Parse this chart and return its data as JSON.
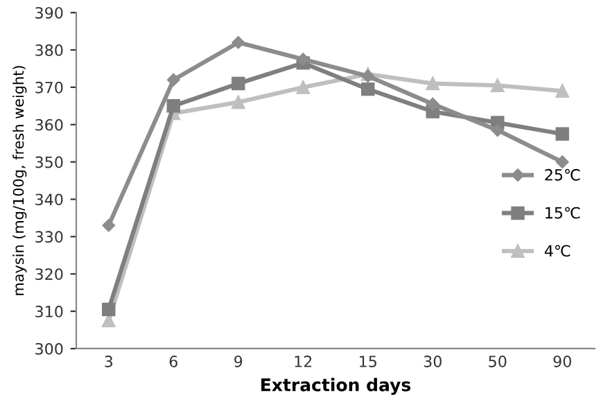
{
  "chart_data": {
    "type": "line",
    "xlabel": "Extraction days",
    "ylabel": "maysin (mg/100g, fresh weight)",
    "categories": [
      "3",
      "6",
      "9",
      "12",
      "15",
      "30",
      "50",
      "90"
    ],
    "series": [
      {
        "name": "25℃",
        "color": "#8c8c8c",
        "marker": "diamond",
        "values": [
          333,
          372,
          382,
          377.5,
          373,
          365.5,
          358.5,
          350
        ]
      },
      {
        "name": "15℃",
        "color": "#7f7f7f",
        "marker": "square",
        "values": [
          310.5,
          365,
          371,
          376.5,
          369.5,
          363.5,
          360.5,
          357.5
        ]
      },
      {
        "name": "4℃",
        "color": "#bfbfbf",
        "marker": "triangle",
        "values": [
          307.5,
          363,
          366,
          370,
          373.5,
          371,
          370.5,
          369
        ]
      }
    ],
    "ylim": [
      300,
      390
    ],
    "yticks": [
      300,
      310,
      320,
      330,
      340,
      350,
      360,
      370,
      380,
      390
    ],
    "grid": false,
    "legend": "right",
    "line_style": "solid"
  }
}
